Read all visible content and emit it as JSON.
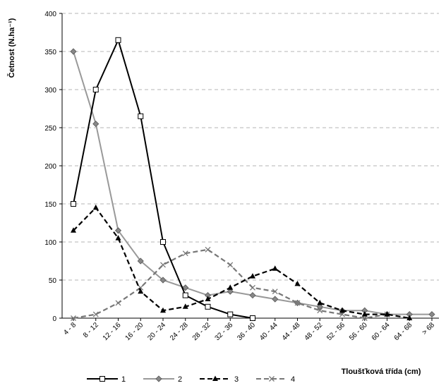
{
  "chart_data": {
    "type": "line",
    "title": "",
    "ylabel": "Četnost (N.ha⁻¹)",
    "xlabel": "Tloušťková třída (cm)",
    "ylim": [
      0,
      400
    ],
    "yticks": [
      0,
      50,
      100,
      150,
      200,
      250,
      300,
      350,
      400
    ],
    "grid": "horizontal dashed",
    "legend_position": "bottom-left",
    "categories": [
      "4 - 8",
      "8 - 12",
      "12 - 16",
      "16 - 20",
      "20 - 24",
      "24 - 28",
      "28 - 32",
      "32 - 36",
      "36 - 40",
      "40 - 44",
      "44 - 48",
      "48 - 52",
      "52 - 56",
      "56 - 60",
      "60 - 64",
      "64 - 68",
      "> 68"
    ],
    "series": [
      {
        "name": "1",
        "color": "#000000",
        "dash": "solid",
        "marker": "square-open",
        "values": [
          150,
          300,
          365,
          265,
          100,
          30,
          15,
          5,
          0,
          null,
          null,
          null,
          null,
          null,
          null,
          null,
          null
        ]
      },
      {
        "name": "2",
        "color": "#999999",
        "dash": "solid",
        "marker": "diamond",
        "values": [
          350,
          255,
          115,
          75,
          50,
          40,
          30,
          35,
          30,
          25,
          20,
          15,
          10,
          10,
          5,
          5,
          5
        ]
      },
      {
        "name": "3",
        "color": "#000000",
        "dash": "dashed",
        "marker": "triangle",
        "values": [
          115,
          145,
          105,
          35,
          10,
          15,
          25,
          40,
          55,
          65,
          45,
          20,
          10,
          5,
          5,
          0,
          null
        ]
      },
      {
        "name": "4",
        "color": "#777777",
        "dash": "dashed",
        "marker": "x",
        "values": [
          0,
          5,
          20,
          40,
          70,
          85,
          90,
          70,
          40,
          35,
          20,
          10,
          5,
          0,
          5,
          null,
          null
        ]
      }
    ]
  }
}
